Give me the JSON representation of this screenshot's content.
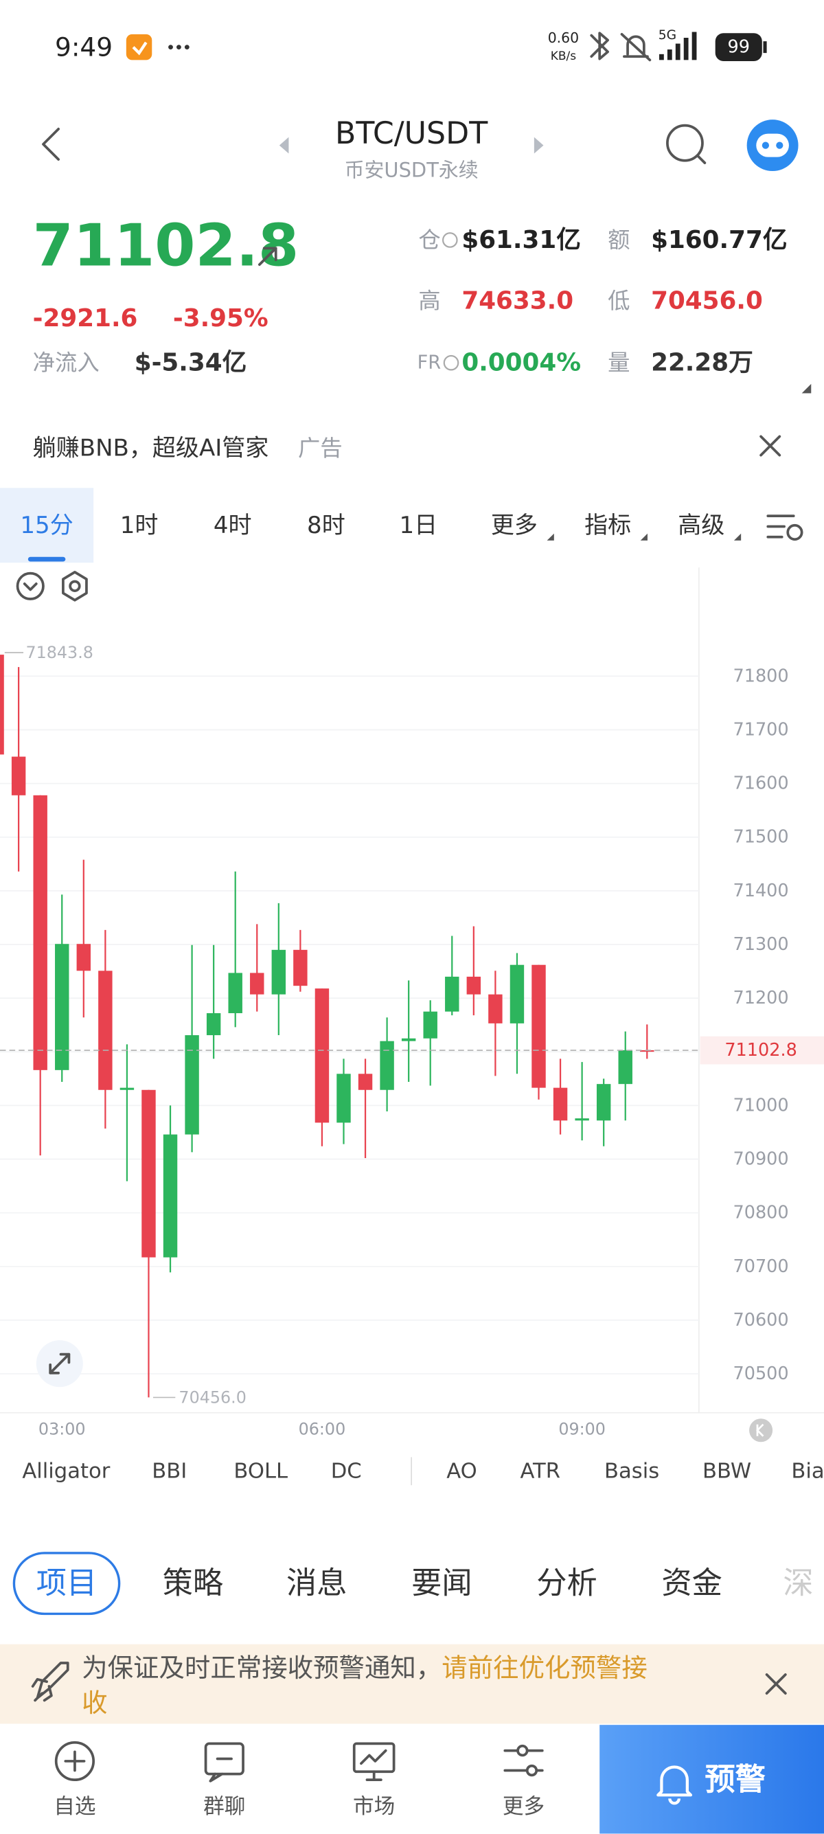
{
  "status_bar": {
    "time": "9:49",
    "speed": "0.60",
    "speed_unit": "KB/s",
    "network": "5G",
    "battery": "99"
  },
  "header": {
    "title": "BTC/USDT",
    "subtitle": "币安USDT永续"
  },
  "ticker": {
    "price": "71102.8",
    "change": "-2921.6",
    "change_pct": "-3.95%",
    "net_inflow_label": "净流入",
    "net_inflow": "$-5.34亿",
    "stats": [
      {
        "label": "仓",
        "value": "$61.31亿"
      },
      {
        "label": "额",
        "value": "$160.77亿"
      },
      {
        "label": "高",
        "value": "74633.0"
      },
      {
        "label": "低",
        "value": "70456.0"
      },
      {
        "label": "FR",
        "value": "0.0004%"
      },
      {
        "label": "量",
        "value": "22.28万"
      }
    ]
  },
  "ad": {
    "text": "躺赚BNB，超级AI管家",
    "tag": "广告"
  },
  "intervals": [
    "15分",
    "1时",
    "4时",
    "8时",
    "1日",
    "更多",
    "指标",
    "高级"
  ],
  "chart_data": {
    "type": "candlestick",
    "categories": [
      null,
      null,
      null,
      "03:00",
      null,
      null,
      null,
      null,
      null,
      null,
      null,
      null,
      null,
      null,
      null,
      "06:00",
      null,
      null,
      null,
      null,
      null,
      null,
      null,
      null,
      null,
      null,
      null,
      "09:00",
      null,
      null,
      null
    ],
    "open": [
      71840,
      71650,
      71578,
      71066,
      71301,
      71251,
      71029,
      71029,
      70717,
      70946,
      71131,
      71172,
      71247,
      71207,
      71290,
      71218,
      70968,
      71059,
      71029,
      71120,
      71125,
      71175,
      71240,
      71207,
      71153,
      71262,
      71033,
      70972,
      70972,
      71040,
      71103
    ],
    "high": [
      71843.8,
      71817,
      71578,
      71393,
      71458,
      71327,
      71114,
      71029,
      71000,
      71299,
      71299,
      71436,
      71338,
      71377,
      71327,
      71218,
      71087,
      71087,
      71164,
      71233,
      71196,
      71316,
      71334,
      71251,
      71284,
      71262,
      71087,
      71081,
      71050,
      71138,
      71151
    ],
    "low": [
      71640,
      71436,
      70907,
      71044,
      71164,
      70957,
      70859,
      70456,
      70689,
      70913,
      71087,
      71146,
      71175,
      71131,
      71212,
      70924,
      70928,
      70902,
      70989,
      71044,
      71037,
      71168,
      71168,
      71055,
      71059,
      71011,
      70946,
      70935,
      70924,
      70972,
      71087
    ],
    "close": [
      71654,
      71578,
      71066,
      71301,
      71251,
      71029,
      71033,
      70717,
      70946,
      71131,
      71172,
      71247,
      71207,
      71290,
      71223,
      70968,
      71059,
      71029,
      71120,
      71125,
      71175,
      71240,
      71207,
      71153,
      71262,
      71033,
      70972,
      70976,
      71040,
      71103,
      71102.8
    ],
    "up_color": "#2db55d",
    "down_color": "#e8424f",
    "ylim": [
      70427.5,
      72002.6
    ],
    "yticks": [
      70500,
      70600,
      70700,
      70800,
      70900,
      71000,
      71100,
      71200,
      71300,
      71400,
      71500,
      71600,
      71700,
      71800
    ],
    "grid": true,
    "max_price": 71843.8,
    "min_price": {
      "value": 70456,
      "label": "70456.0"
    },
    "last_price": 71102.8
  },
  "indicators": [
    "Alligator",
    "BBI",
    "BOLL",
    "DC",
    "AO",
    "ATR",
    "Basis",
    "BBW",
    "Bia"
  ],
  "tabs": [
    "项目",
    "策略",
    "消息",
    "要闻",
    "分析",
    "资金",
    "深"
  ],
  "notice": {
    "text": "为保证及时正常接收预警通知，",
    "link": [
      "请前往优化预警接",
      "收"
    ]
  },
  "bottom_nav": [
    "自选",
    "群聊",
    "市场",
    "更多"
  ],
  "alert_button": "预警"
}
